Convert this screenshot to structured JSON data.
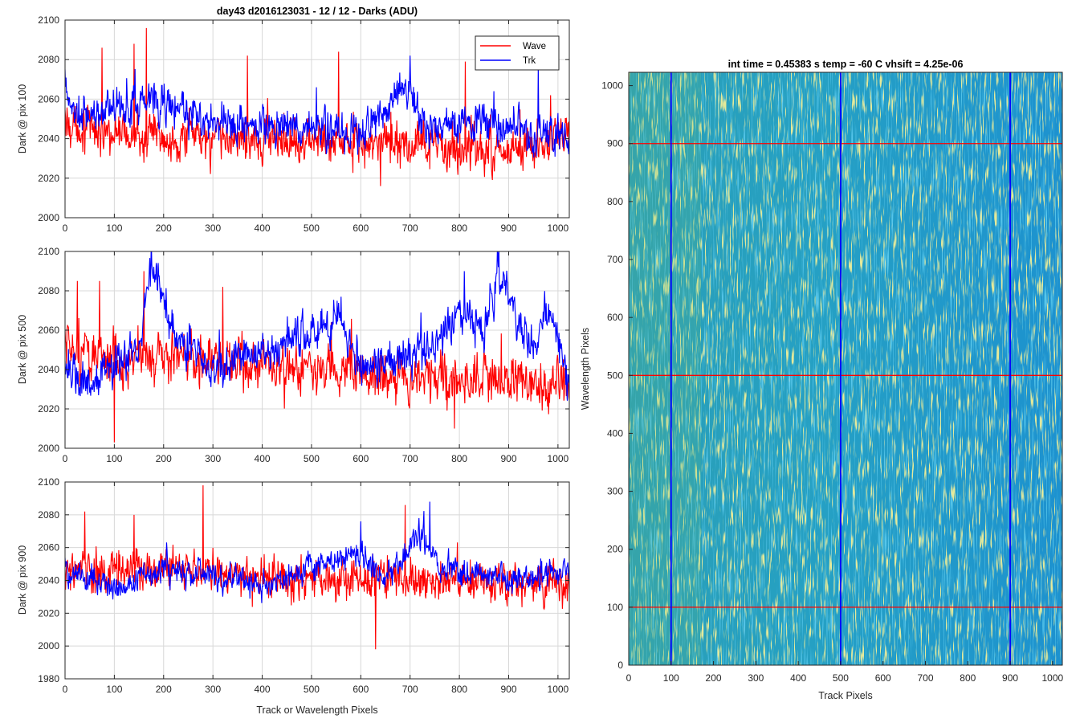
{
  "figure": {
    "panel1_title": "day43 d2016123031 - 12 / 12 - Darks (ADU)",
    "panel4_title": "int time = 0.45383 s    temp = -60 C    vhsift = 4.25e-06",
    "bottom_xlabel": "Track or Wavelength Pixels",
    "image_xlabel": "Track Pixels",
    "image_ylabel": "Wavelength Pixels"
  },
  "colors": {
    "wave": "#ff0000",
    "trk": "#0000ff",
    "grid": "#d8d8d8",
    "axis": "#262626"
  },
  "chart_data": [
    {
      "type": "line",
      "title": "day43 d2016123031 - 12 / 12 - Darks (ADU)",
      "xlabel": "",
      "ylabel": "Dark @ pix 100",
      "xlim": [
        0,
        1023
      ],
      "ylim": [
        2000,
        2100
      ],
      "xticks": [
        0,
        100,
        200,
        300,
        400,
        500,
        600,
        700,
        800,
        900,
        1000
      ],
      "yticks": [
        2000,
        2020,
        2040,
        2060,
        2080,
        2100
      ],
      "grid": true,
      "legend": "top-right",
      "series": [
        {
          "name": "Wave",
          "color": "#ff0000",
          "baseline": 2040,
          "noise": 8,
          "spike": 20,
          "anchors": [
            [
              0,
              2048
            ],
            [
              100,
              2042
            ],
            [
              300,
              2040
            ],
            [
              500,
              2040
            ],
            [
              700,
              2036
            ],
            [
              900,
              2034
            ],
            [
              1023,
              2040
            ]
          ],
          "peaks": [
            [
              75,
              2086
            ],
            [
              140,
              2088
            ],
            [
              165,
              2096
            ],
            [
              370,
              2082
            ],
            [
              555,
              2084
            ],
            [
              812,
              2079
            ],
            [
              985,
              2062
            ],
            [
              640,
              2016
            ]
          ]
        },
        {
          "name": "Trk",
          "color": "#0000ff",
          "baseline": 2045,
          "noise": 7,
          "spike": 12,
          "anchors": [
            [
              0,
              2062
            ],
            [
              30,
              2050
            ],
            [
              100,
              2055
            ],
            [
              170,
              2060
            ],
            [
              300,
              2048
            ],
            [
              450,
              2047
            ],
            [
              600,
              2042
            ],
            [
              700,
              2068
            ],
            [
              720,
              2048
            ],
            [
              850,
              2048
            ],
            [
              1023,
              2040
            ]
          ],
          "peaks": [
            [
              0,
              2075
            ],
            [
              170,
              2068
            ],
            [
              510,
              2066
            ],
            [
              700,
              2082
            ],
            [
              960,
              2077
            ],
            [
              870,
              2064
            ]
          ]
        }
      ]
    },
    {
      "type": "line",
      "xlabel": "",
      "ylabel": "Dark @ pix 500",
      "xlim": [
        0,
        1023
      ],
      "ylim": [
        2000,
        2100
      ],
      "xticks": [
        0,
        100,
        200,
        300,
        400,
        500,
        600,
        700,
        800,
        900,
        1000
      ],
      "yticks": [
        2000,
        2020,
        2040,
        2060,
        2080,
        2100
      ],
      "grid": true,
      "series": [
        {
          "name": "Wave",
          "color": "#ff0000",
          "baseline": 2042,
          "noise": 9,
          "spike": 20,
          "anchors": [
            [
              0,
              2050
            ],
            [
              100,
              2045
            ],
            [
              200,
              2048
            ],
            [
              400,
              2040
            ],
            [
              600,
              2038
            ],
            [
              800,
              2034
            ],
            [
              1023,
              2032
            ]
          ],
          "peaks": [
            [
              25,
              2085
            ],
            [
              70,
              2085
            ],
            [
              160,
              2090
            ],
            [
              320,
              2082
            ],
            [
              100,
              2003
            ],
            [
              540,
              2064
            ],
            [
              790,
              2010
            ]
          ]
        },
        {
          "name": "Trk",
          "color": "#0000ff",
          "baseline": 2043,
          "noise": 7,
          "spike": 10,
          "anchors": [
            [
              0,
              2045
            ],
            [
              30,
              2030
            ],
            [
              100,
              2042
            ],
            [
              150,
              2050
            ],
            [
              175,
              2094
            ],
            [
              220,
              2060
            ],
            [
              300,
              2040
            ],
            [
              400,
              2050
            ],
            [
              550,
              2065
            ],
            [
              600,
              2040
            ],
            [
              750,
              2050
            ],
            [
              800,
              2070
            ],
            [
              850,
              2060
            ],
            [
              880,
              2090
            ],
            [
              950,
              2050
            ],
            [
              980,
              2072
            ],
            [
              1023,
              2030
            ]
          ],
          "peaks": [
            [
              175,
              2106
            ],
            [
              880,
              2106
            ],
            [
              810,
              2090
            ],
            [
              560,
              2077
            ]
          ]
        }
      ]
    },
    {
      "type": "line",
      "xlabel": "Track or Wavelength Pixels",
      "ylabel": "Dark @ pix 900",
      "xlim": [
        0,
        1023
      ],
      "ylim": [
        1980,
        2100
      ],
      "xticks": [
        0,
        100,
        200,
        300,
        400,
        500,
        600,
        700,
        800,
        900,
        1000
      ],
      "yticks": [
        1980,
        2000,
        2020,
        2040,
        2060,
        2080,
        2100
      ],
      "grid": true,
      "series": [
        {
          "name": "Wave",
          "color": "#ff0000",
          "baseline": 2042,
          "noise": 9,
          "spike": 22,
          "anchors": [
            [
              0,
              2045
            ],
            [
              200,
              2048
            ],
            [
              400,
              2042
            ],
            [
              600,
              2040
            ],
            [
              800,
              2040
            ],
            [
              1023,
              2038
            ]
          ],
          "peaks": [
            [
              280,
              2098
            ],
            [
              40,
              2082
            ],
            [
              140,
              2080
            ],
            [
              630,
              1998
            ],
            [
              690,
              2086
            ]
          ]
        },
        {
          "name": "Trk",
          "color": "#0000ff",
          "baseline": 2040,
          "noise": 6,
          "spike": 10,
          "anchors": [
            [
              0,
              2045
            ],
            [
              100,
              2036
            ],
            [
              200,
              2046
            ],
            [
              400,
              2038
            ],
            [
              600,
              2056
            ],
            [
              650,
              2040
            ],
            [
              720,
              2070
            ],
            [
              760,
              2048
            ],
            [
              900,
              2040
            ],
            [
              1023,
              2045
            ]
          ],
          "peaks": [
            [
              740,
              2088
            ],
            [
              600,
              2076
            ]
          ]
        }
      ]
    },
    {
      "type": "heatmap",
      "title": "int time = 0.45383 s    temp = -60 C    vhsift = 4.25e-06",
      "xlabel": "Track Pixels",
      "ylabel": "Wavelength Pixels",
      "xlim": [
        0,
        1023
      ],
      "ylim": [
        0,
        1023
      ],
      "xticks": [
        0,
        100,
        200,
        300,
        400,
        500,
        600,
        700,
        800,
        900,
        1000
      ],
      "yticks": [
        0,
        100,
        200,
        300,
        400,
        500,
        600,
        700,
        800,
        900,
        1000
      ],
      "colormap": "parula",
      "horizontal_lines": [
        100,
        500,
        900
      ],
      "horizontal_line_color": "#ff0000",
      "vertical_lines": [
        100,
        500,
        900
      ],
      "vertical_line_color": "#0000ff"
    }
  ]
}
